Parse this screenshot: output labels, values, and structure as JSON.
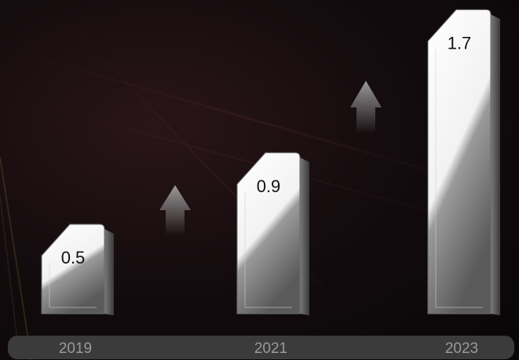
{
  "chart_data": {
    "type": "bar",
    "categories": [
      "2019",
      "2021",
      "2023"
    ],
    "values": [
      0.5,
      0.9,
      1.7
    ],
    "title": "",
    "xlabel": "",
    "ylabel": "",
    "ylim": [
      0,
      1.8
    ],
    "grid": false,
    "legend": "none",
    "colors": {
      "bar_light": "#ffffff",
      "bar_shadow": "#555555",
      "axis_pill": "#3b3b3b",
      "tick_text": "#9a9a9a",
      "arrow": "#8f8f8f"
    },
    "growth_arrows": 2
  }
}
